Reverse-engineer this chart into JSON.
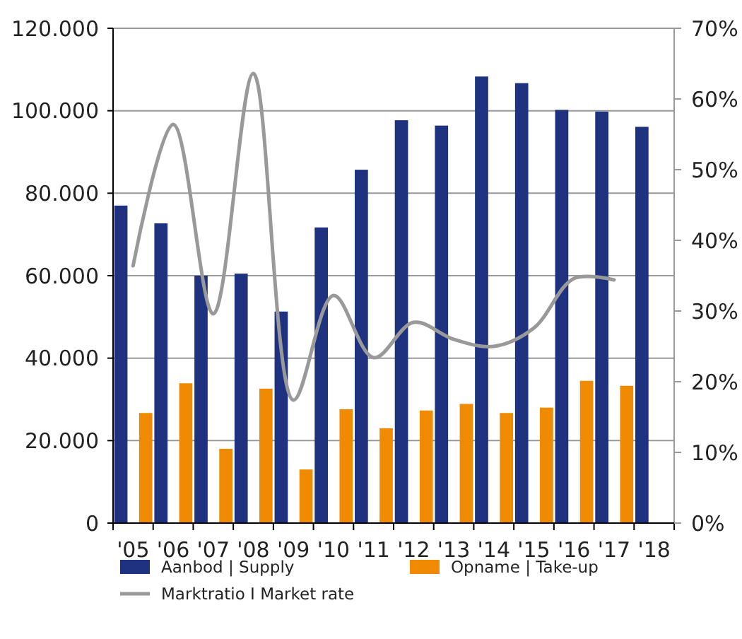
{
  "chart_data": {
    "type": "bar",
    "categories": [
      "'05",
      "'06",
      "'07",
      "'08",
      "'09",
      "'10",
      "'11",
      "'12",
      "'13",
      "'14",
      "'15",
      "'16",
      "'17",
      "'18"
    ],
    "series": [
      {
        "name": "Aanbod | Supply",
        "color": "#1f3280",
        "values": [
          77000,
          72700,
          60000,
          60500,
          51300,
          71700,
          85700,
          97700,
          96400,
          108300,
          106700,
          100200,
          99800,
          96100
        ]
      },
      {
        "name": "Opname | Take-up",
        "color": "#f08a00",
        "values": [
          26700,
          33900,
          18000,
          32600,
          13000,
          27600,
          23000,
          27300,
          28900,
          26700,
          28000,
          34500,
          33300,
          null
        ]
      },
      {
        "name": "Marktratio I Market rate",
        "type": "line",
        "axis": "y2",
        "color": "#999999",
        "values": [
          36.4,
          56.4,
          29.6,
          63.6,
          17.4,
          32.2,
          23.4,
          28.4,
          26,
          25,
          27.6,
          34.6,
          34.4,
          null
        ]
      }
    ],
    "ylim": [
      0,
      120000
    ],
    "yticks": [
      {
        "value": 0,
        "label": "0"
      },
      {
        "value": 20000,
        "label": "20.000"
      },
      {
        "value": 40000,
        "label": "40.000"
      },
      {
        "value": 60000,
        "label": "60.000"
      },
      {
        "value": 80000,
        "label": "80.000"
      },
      {
        "value": 100000,
        "label": "100.000"
      },
      {
        "value": 120000,
        "label": "120.000"
      }
    ],
    "y2lim": [
      0,
      70
    ],
    "y2ticks": [
      {
        "value": 0,
        "label": "0%"
      },
      {
        "value": 10,
        "label": "10%"
      },
      {
        "value": 20,
        "label": "20%"
      },
      {
        "value": 30,
        "label": "30%"
      },
      {
        "value": 40,
        "label": "40%"
      },
      {
        "value": 50,
        "label": "50%"
      },
      {
        "value": 60,
        "label": "60%"
      },
      {
        "value": 70,
        "label": "70%"
      }
    ],
    "grid": "y",
    "legend": "bottom",
    "line_style": "solid",
    "marker": "none"
  }
}
